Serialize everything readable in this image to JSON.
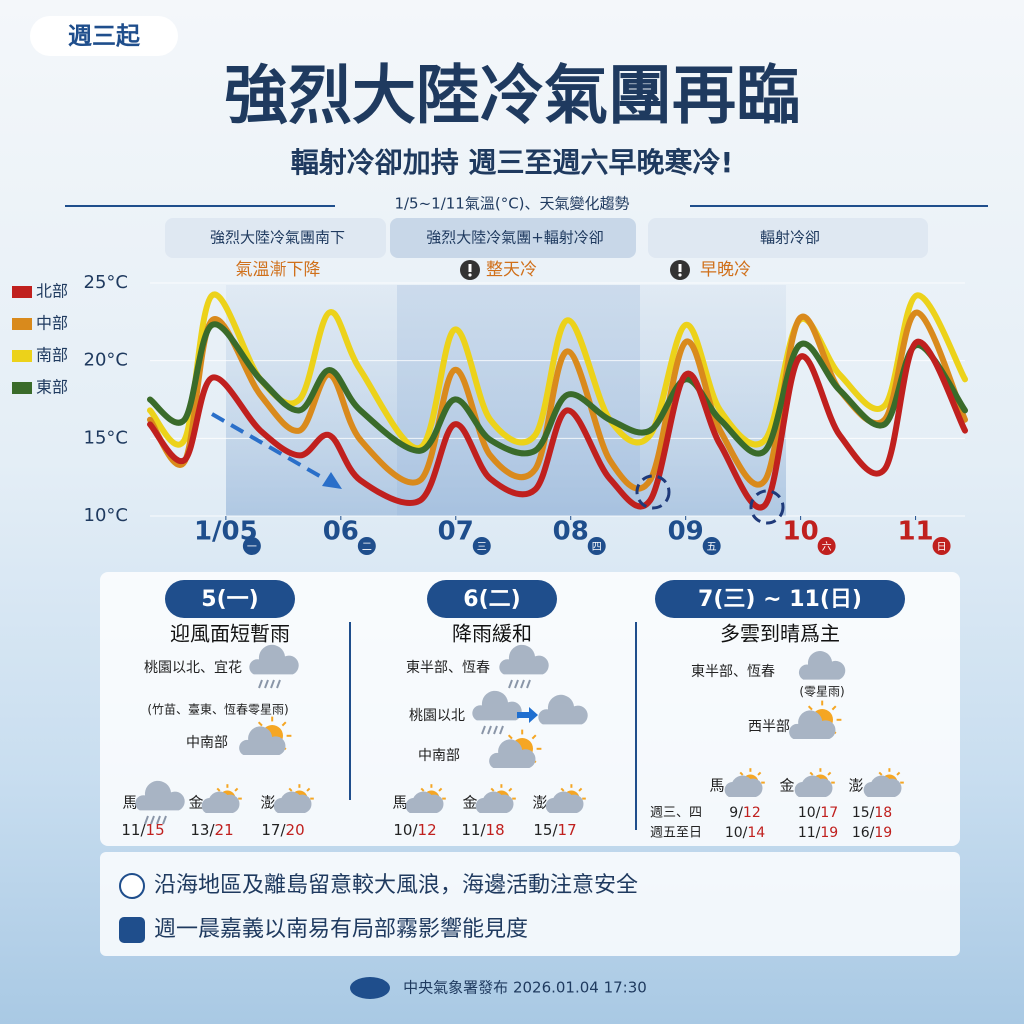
{
  "header": {
    "badge": "週三起",
    "title": "強烈大陸冷氣團再臨",
    "subtitle": "輻射冷卻加持 週三至週六早晚寒冷!"
  },
  "chart_data": {
    "type": "line",
    "title": "1/5~1/11氣溫(°C)、天氣變化趨勢",
    "phases": [
      "強烈大陸冷氣團南下",
      "強烈大陸冷氣團+輻射冷卻",
      "輻射冷卻"
    ],
    "annotations": [
      "氣溫漸下降",
      "整天冷",
      "早晚冷"
    ],
    "x": [
      4.34,
      4.64,
      4.88,
      5.3,
      5.64,
      5.9,
      6.17,
      6.69,
      6.99,
      7.3,
      7.69,
      7.97,
      8.34,
      8.69,
      9.0,
      9.3,
      9.69,
      9.99,
      10.34,
      10.73,
      11.01,
      11.43
    ],
    "xlim": [
      4.34,
      11.43
    ],
    "xticks": [
      {
        "value": 5,
        "label": "1/05"
      },
      {
        "value": 6,
        "label": "06"
      },
      {
        "value": 7,
        "label": "07"
      },
      {
        "value": 8,
        "label": "08"
      },
      {
        "value": 9,
        "label": "09"
      },
      {
        "value": 10,
        "label": "10"
      },
      {
        "value": 11,
        "label": "11"
      }
    ],
    "weekdays": [
      "一",
      "二",
      "三",
      "四",
      "五",
      "六",
      "日"
    ],
    "weekday_colors": [
      "#1f4e8c",
      "#1f4e8c",
      "#1f4e8c",
      "#1f4e8c",
      "#1f4e8c",
      "#c0201e",
      "#c0201e"
    ],
    "ylim": [
      10,
      25
    ],
    "yticks": [
      {
        "value": 10,
        "label": "10°C"
      },
      {
        "value": 15,
        "label": "15°C"
      },
      {
        "value": 20,
        "label": "20°C"
      },
      {
        "value": 25,
        "label": "25°C"
      }
    ],
    "grid": true,
    "series": [
      {
        "name": "北部",
        "color": "#c0201e",
        "values": [
          15.9,
          13.6,
          18.9,
          15.5,
          13.9,
          15.2,
          12.3,
          11.0,
          15.9,
          12.4,
          11.7,
          16.8,
          12.4,
          11.0,
          19.1,
          14.6,
          10.7,
          20.2,
          15.2,
          13.0,
          21.2,
          15.5
        ]
      },
      {
        "name": "中部",
        "color": "#d98a1c",
        "values": [
          16.2,
          13.5,
          22.6,
          17.8,
          15.5,
          19.1,
          14.9,
          12.3,
          19.4,
          13.9,
          13.0,
          20.6,
          13.6,
          12.3,
          21.2,
          15.5,
          12.3,
          22.7,
          18.1,
          16.2,
          23.1,
          16.2
        ]
      },
      {
        "name": "南部",
        "color": "#ecd21a",
        "values": [
          16.8,
          14.9,
          24.2,
          18.8,
          17.5,
          23.1,
          19.4,
          14.4,
          22.0,
          16.2,
          15.2,
          22.6,
          16.2,
          15.2,
          22.3,
          16.8,
          14.9,
          22.6,
          19.1,
          17.1,
          24.2,
          18.8
        ]
      },
      {
        "name": "東部",
        "color": "#3a6b2a",
        "values": [
          17.5,
          16.2,
          22.3,
          18.8,
          16.8,
          19.4,
          16.8,
          14.2,
          17.5,
          14.9,
          14.2,
          17.8,
          16.2,
          15.5,
          18.8,
          16.2,
          14.2,
          21.0,
          18.1,
          15.9,
          21.0,
          16.8
        ]
      }
    ]
  },
  "temp_separator": "/",
  "panels": [
    {
      "title": "5(一)",
      "headline": "迎風面短暫雨",
      "items": [
        "桃園以北、宜花",
        "(竹苗、臺東、恆春零星雨)",
        "中南部"
      ],
      "islands": [
        {
          "name": "馬",
          "low": 11,
          "high": 15
        },
        {
          "name": "金",
          "low": 13,
          "high": 21
        },
        {
          "name": "澎",
          "low": 17,
          "high": 20
        }
      ]
    },
    {
      "title": "6(二)",
      "headline": "降雨緩和",
      "items": [
        "東半部、恆春",
        "桃園以北",
        "中南部"
      ],
      "islands": [
        {
          "name": "馬",
          "low": 10,
          "high": 12
        },
        {
          "name": "金",
          "low": 11,
          "high": 18
        },
        {
          "name": "澎",
          "low": 15,
          "high": 17
        }
      ]
    },
    {
      "title": "7(三) ~ 11(日)",
      "headline": "多雲到晴爲主",
      "items": [
        "東半部、恆春",
        "(零星雨)",
        "西半部"
      ],
      "island_names": [
        "馬",
        "金",
        "澎"
      ],
      "rows": [
        {
          "label": "週三、四",
          "temps": [
            {
              "low": 9,
              "high": 12
            },
            {
              "low": 10,
              "high": 17
            },
            {
              "low": 15,
              "high": 18
            }
          ]
        },
        {
          "label": "週五至日",
          "temps": [
            {
              "low": 10,
              "high": 14
            },
            {
              "low": 11,
              "high": 19
            },
            {
              "low": 16,
              "high": 19
            }
          ]
        }
      ]
    }
  ],
  "notes": [
    "沿海地區及離島留意較大風浪，海邊活動注意安全",
    "週一晨嘉義以南易有局部霧影響能見度"
  ],
  "footer": "中央氣象署發布 2026.01.04 17:30"
}
